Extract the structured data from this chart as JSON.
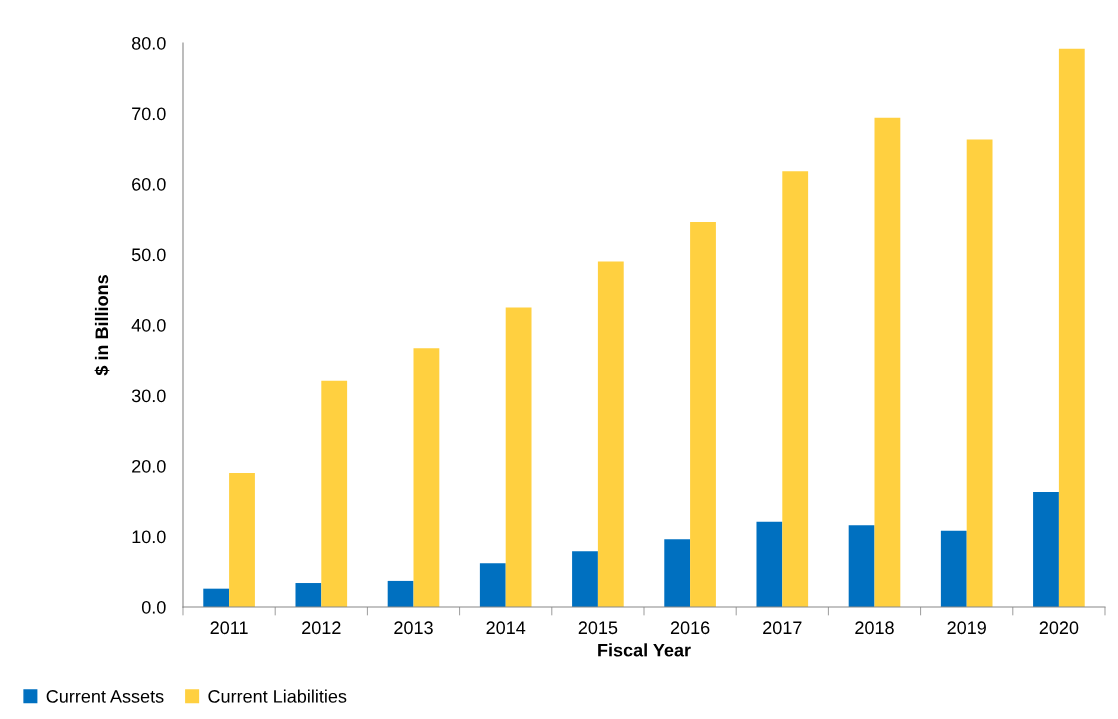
{
  "chart_data": {
    "type": "bar",
    "xlabel": "Fiscal Year",
    "ylabel": "$ in Billions",
    "categories": [
      "2011",
      "2012",
      "2013",
      "2014",
      "2015",
      "2016",
      "2017",
      "2018",
      "2019",
      "2020"
    ],
    "series": [
      {
        "name": "Current Assets",
        "color": "#0070c0",
        "values": [
          2.6,
          3.4,
          3.7,
          6.2,
          7.9,
          9.6,
          12.1,
          11.6,
          10.8,
          16.3
        ]
      },
      {
        "name": "Current Liabilities",
        "color": "#ffd040",
        "values": [
          19.0,
          32.1,
          36.7,
          42.5,
          49.0,
          54.6,
          61.8,
          69.4,
          66.3,
          79.2
        ]
      }
    ],
    "ylim": [
      0,
      80
    ],
    "yticks": [
      {
        "value": 0,
        "label": "0.0"
      },
      {
        "value": 10,
        "label": "10.0"
      },
      {
        "value": 20,
        "label": "20.0"
      },
      {
        "value": 30,
        "label": "30.0"
      },
      {
        "value": 40,
        "label": "40.0"
      },
      {
        "value": 50,
        "label": "50.0"
      },
      {
        "value": 60,
        "label": "60.0"
      },
      {
        "value": 70,
        "label": "70.0"
      },
      {
        "value": 80,
        "label": "80.0"
      }
    ],
    "grid": false,
    "legend": "bottom left"
  }
}
